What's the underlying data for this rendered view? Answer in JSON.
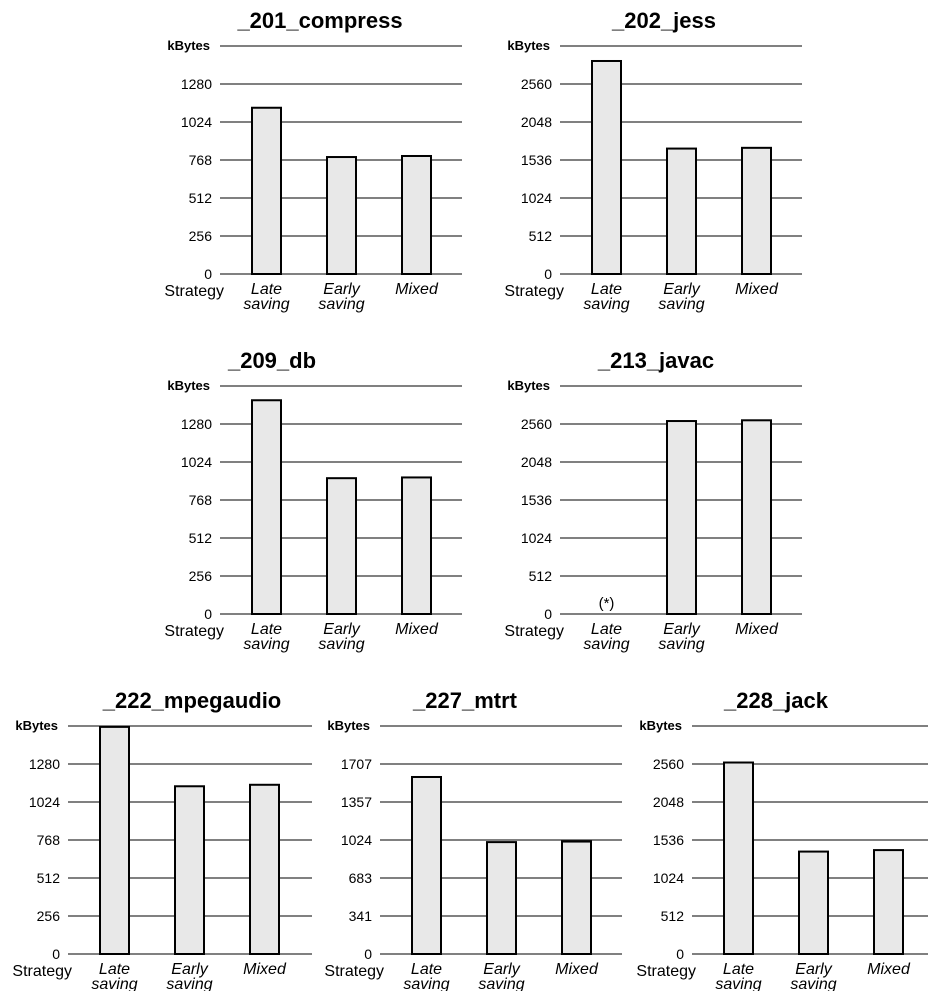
{
  "chart_data": [
    {
      "type": "bar",
      "title": "_201_compress",
      "ylabel": "kBytes",
      "xlabel": "Strategy",
      "yticks": [
        "0",
        "256",
        "512",
        "768",
        "1024",
        "1280"
      ],
      "ylim": [
        0,
        1536
      ],
      "categories": [
        "Late saving",
        "Early saving",
        "Mixed"
      ],
      "values": [
        1120,
        788,
        795
      ],
      "annotations": []
    },
    {
      "type": "bar",
      "title": "_202_jess",
      "ylabel": "kBytes",
      "xlabel": "Strategy",
      "yticks": [
        "0",
        "512",
        "1024",
        "1536",
        "2048",
        "2560"
      ],
      "ylim": [
        0,
        3072
      ],
      "categories": [
        "Late saving",
        "Early saving",
        "Mixed"
      ],
      "values": [
        2870,
        1690,
        1700
      ],
      "annotations": []
    },
    {
      "type": "bar",
      "title": "_209_db",
      "ylabel": "kBytes",
      "xlabel": "Strategy",
      "yticks": [
        "0",
        "256",
        "512",
        "768",
        "1024",
        "1280"
      ],
      "ylim": [
        0,
        1536
      ],
      "categories": [
        "Late saving",
        "Early saving",
        "Mixed"
      ],
      "values": [
        1440,
        915,
        920
      ],
      "annotations": []
    },
    {
      "type": "bar",
      "title": "_213_javac",
      "ylabel": "kBytes",
      "xlabel": "Strategy",
      "yticks": [
        "0",
        "512",
        "1024",
        "1536",
        "2048",
        "2560"
      ],
      "ylim": [
        0,
        3072
      ],
      "categories": [
        "Late saving",
        "Early saving",
        "Mixed"
      ],
      "values": [
        null,
        2600,
        2610
      ],
      "annotations": [
        {
          "category": 0,
          "text": "(*)"
        }
      ]
    },
    {
      "type": "bar",
      "title": "_222_mpegaudio",
      "ylabel": "kBytes",
      "xlabel": "Strategy",
      "yticks": [
        "0",
        "256",
        "512",
        "768",
        "1024",
        "1280"
      ],
      "ylim": [
        0,
        1536
      ],
      "categories": [
        "Late saving",
        "Early saving",
        "Mixed"
      ],
      "values": [
        1530,
        1130,
        1140
      ],
      "annotations": []
    },
    {
      "type": "bar",
      "title": "_227_mtrt",
      "ylabel": "kBytes",
      "xlabel": "Strategy",
      "yticks": [
        "0",
        "341",
        "683",
        "1024",
        "1357",
        "1707"
      ],
      "ylim": [
        0,
        2048
      ],
      "categories": [
        "Late saving",
        "Early saving",
        "Mixed"
      ],
      "values": [
        1590,
        1005,
        1010
      ],
      "annotations": []
    },
    {
      "type": "bar",
      "title": "_228_jack",
      "ylabel": "kBytes",
      "xlabel": "Strategy",
      "yticks": [
        "0",
        "512",
        "1024",
        "1536",
        "2048",
        "2560"
      ],
      "ylim": [
        0,
        3072
      ],
      "categories": [
        "Late saving",
        "Early saving",
        "Mixed"
      ],
      "values": [
        2580,
        1380,
        1400
      ],
      "annotations": []
    }
  ]
}
